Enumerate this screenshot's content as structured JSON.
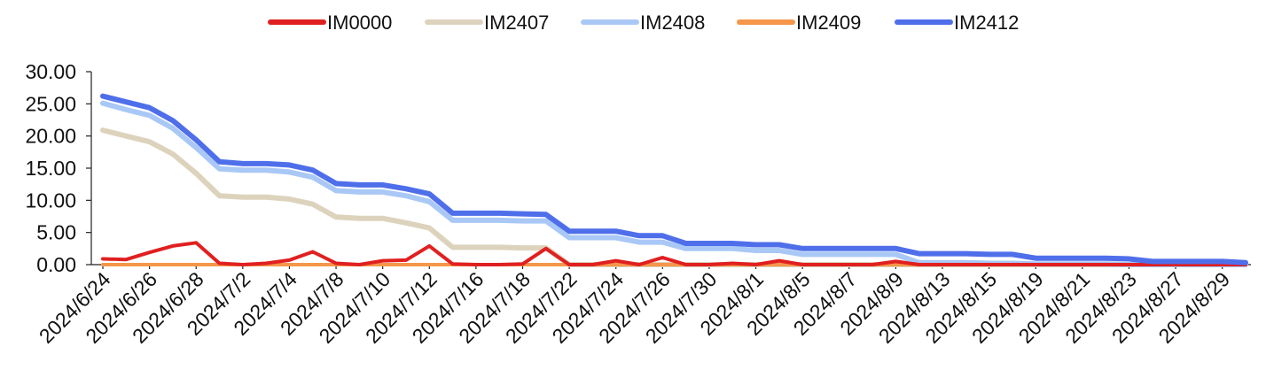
{
  "chart_data": {
    "type": "line",
    "title": "",
    "xlabel": "",
    "ylabel": "",
    "ylim": [
      0,
      30
    ],
    "yticks": [
      "0.00",
      "5.00",
      "10.00",
      "15.00",
      "20.00",
      "25.00",
      "30.00"
    ],
    "x": [
      "2024/6/24",
      "2024/6/25",
      "2024/6/26",
      "2024/6/27",
      "2024/6/28",
      "2024/7/1",
      "2024/7/2",
      "2024/7/3",
      "2024/7/4",
      "2024/7/5",
      "2024/7/8",
      "2024/7/9",
      "2024/7/10",
      "2024/7/11",
      "2024/7/12",
      "2024/7/15",
      "2024/7/16",
      "2024/7/17",
      "2024/7/18",
      "2024/7/19",
      "2024/7/22",
      "2024/7/23",
      "2024/7/24",
      "2024/7/25",
      "2024/7/26",
      "2024/7/29",
      "2024/7/30",
      "2024/7/31",
      "2024/8/1",
      "2024/8/2",
      "2024/8/5",
      "2024/8/6",
      "2024/8/7",
      "2024/8/8",
      "2024/8/9",
      "2024/8/12",
      "2024/8/13",
      "2024/8/14",
      "2024/8/15",
      "2024/8/16",
      "2024/8/19",
      "2024/8/20",
      "2024/8/21",
      "2024/8/22",
      "2024/8/23",
      "2024/8/26",
      "2024/8/27",
      "2024/8/28",
      "2024/8/29",
      "2024/8/30"
    ],
    "xtick_labels": [
      "2024/6/24",
      "2024/6/26",
      "2024/6/28",
      "2024/7/2",
      "2024/7/4",
      "2024/7/8",
      "2024/7/10",
      "2024/7/12",
      "2024/7/16",
      "2024/7/18",
      "2024/7/22",
      "2024/7/24",
      "2024/7/26",
      "2024/7/30",
      "2024/8/1",
      "2024/8/5",
      "2024/8/7",
      "2024/8/9",
      "2024/8/13",
      "2024/8/15",
      "2024/8/19",
      "2024/8/21",
      "2024/8/23",
      "2024/8/27",
      "2024/8/29"
    ],
    "legend_position": "top-center",
    "grid": false,
    "series": [
      {
        "name": "IM0000",
        "color": "#e02020",
        "width": 4,
        "values": [
          0.9,
          0.8,
          1.9,
          2.9,
          3.4,
          0.2,
          0.0,
          0.2,
          0.7,
          2.0,
          0.2,
          0.0,
          0.6,
          0.7,
          2.9,
          0.1,
          0.0,
          0.0,
          0.1,
          2.5,
          0.0,
          0.0,
          0.6,
          0.0,
          1.1,
          0.0,
          0.0,
          0.2,
          0.0,
          0.6,
          0.0,
          0.0,
          0.0,
          0.0,
          0.5,
          0.0,
          0.0,
          0.0,
          0.0,
          0.0,
          0.0,
          0.0,
          0.0,
          0.0,
          0.0,
          0.0,
          0.0,
          0.0,
          0.0,
          0.0
        ]
      },
      {
        "name": "IM2407",
        "color": "#ddd3bd",
        "width": 6,
        "values": [
          20.9,
          20.0,
          19.1,
          17.2,
          14.2,
          10.7,
          10.5,
          10.5,
          10.2,
          9.4,
          7.4,
          7.2,
          7.2,
          6.5,
          5.7,
          2.7,
          2.7,
          2.7,
          2.6,
          2.6,
          0.0,
          0.0,
          0.0,
          0.0,
          0.0,
          0.0,
          0.0,
          0.0,
          0.0,
          0.0,
          0.0,
          0.0,
          0.0,
          0.0,
          0.0,
          0.0,
          0.0,
          0.0,
          0.0,
          0.0,
          0.0,
          0.0,
          0.0,
          0.0,
          0.0,
          0.0,
          0.0,
          0.0,
          0.0,
          0.0
        ]
      },
      {
        "name": "IM2408",
        "color": "#a9c8f6",
        "width": 6,
        "values": [
          25.1,
          24.1,
          23.2,
          21.2,
          18.2,
          14.9,
          14.7,
          14.7,
          14.4,
          13.6,
          11.5,
          11.3,
          11.3,
          10.7,
          9.8,
          6.9,
          6.9,
          6.9,
          6.8,
          6.8,
          4.2,
          4.2,
          4.2,
          3.5,
          3.5,
          2.5,
          2.5,
          2.5,
          2.2,
          2.2,
          1.6,
          1.6,
          1.6,
          1.6,
          1.6,
          0.3,
          0.3,
          0.3,
          0.2,
          0.2,
          0.1,
          0.1,
          0.1,
          0.1,
          0.0,
          0.0,
          0.0,
          0.0,
          0.0,
          0.0
        ]
      },
      {
        "name": "IM2409",
        "color": "#f5964a",
        "width": 4,
        "values": [
          0.0,
          0.0,
          0.0,
          0.0,
          0.0,
          0.0,
          0.0,
          0.0,
          0.0,
          0.0,
          0.0,
          0.0,
          0.0,
          0.0,
          0.0,
          0.0,
          0.0,
          0.0,
          0.0,
          0.0,
          0.0,
          0.0,
          0.0,
          0.0,
          0.0,
          0.0,
          0.0,
          0.0,
          0.0,
          0.0,
          0.0,
          0.0,
          0.0,
          0.0,
          0.0,
          0.0,
          0.0,
          0.0,
          0.0,
          0.0,
          0.0,
          0.0,
          0.0,
          0.0,
          0.0,
          0.0,
          0.0,
          0.0,
          0.0,
          0.0
        ]
      },
      {
        "name": "IM2412",
        "color": "#4f6fea",
        "width": 6,
        "values": [
          26.2,
          25.3,
          24.4,
          22.4,
          19.4,
          16.0,
          15.7,
          15.7,
          15.5,
          14.7,
          12.6,
          12.4,
          12.4,
          11.8,
          11.0,
          8.0,
          8.0,
          8.0,
          7.9,
          7.8,
          5.2,
          5.2,
          5.2,
          4.5,
          4.5,
          3.3,
          3.3,
          3.3,
          3.1,
          3.1,
          2.5,
          2.5,
          2.5,
          2.5,
          2.5,
          1.7,
          1.7,
          1.7,
          1.6,
          1.6,
          1.0,
          1.0,
          1.0,
          1.0,
          0.9,
          0.5,
          0.5,
          0.5,
          0.5,
          0.3
        ]
      }
    ]
  }
}
